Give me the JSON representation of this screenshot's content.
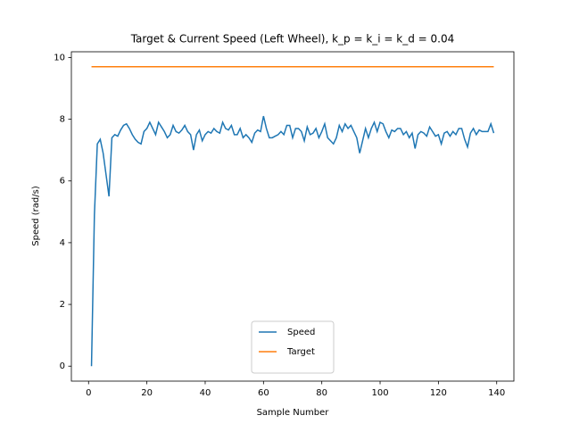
{
  "chart_data": {
    "type": "line",
    "title": "Target & Current Speed (Left Wheel), k_p = k_i = k_d = 0.04",
    "x_label": "Sample Number",
    "y_label": "Speed (rad/s)",
    "x": [
      1,
      2,
      3,
      4,
      5,
      6,
      7,
      8,
      9,
      10,
      11,
      12,
      13,
      14,
      15,
      16,
      17,
      18,
      19,
      20,
      21,
      22,
      23,
      24,
      25,
      26,
      27,
      28,
      29,
      30,
      31,
      32,
      33,
      34,
      35,
      36,
      37,
      38,
      39,
      40,
      41,
      42,
      43,
      44,
      45,
      46,
      47,
      48,
      49,
      50,
      51,
      52,
      53,
      54,
      55,
      56,
      57,
      58,
      59,
      60,
      61,
      62,
      63,
      64,
      65,
      66,
      67,
      68,
      69,
      70,
      71,
      72,
      73,
      74,
      75,
      76,
      77,
      78,
      79,
      80,
      81,
      82,
      83,
      84,
      85,
      86,
      87,
      88,
      89,
      90,
      91,
      92,
      93,
      94,
      95,
      96,
      97,
      98,
      99,
      100,
      101,
      102,
      103,
      104,
      105,
      106,
      107,
      108,
      109,
      110,
      111,
      112,
      113,
      114,
      115,
      116,
      117,
      118,
      119,
      120,
      121,
      122,
      123,
      124,
      125,
      126,
      127,
      128,
      129,
      130,
      131,
      132,
      133,
      134,
      135,
      136,
      137,
      138,
      139
    ],
    "series": [
      {
        "name": "Speed",
        "color": "#1f77b4",
        "values": [
          0,
          4.9,
          7.2,
          7.35,
          6.9,
          6.2,
          5.5,
          7.4,
          7.5,
          7.45,
          7.65,
          7.8,
          7.85,
          7.7,
          7.5,
          7.35,
          7.25,
          7.2,
          7.6,
          7.7,
          7.9,
          7.7,
          7.5,
          7.9,
          7.75,
          7.6,
          7.4,
          7.5,
          7.8,
          7.6,
          7.55,
          7.65,
          7.8,
          7.6,
          7.5,
          7.0,
          7.5,
          7.65,
          7.3,
          7.5,
          7.6,
          7.55,
          7.7,
          7.6,
          7.55,
          7.9,
          7.7,
          7.65,
          7.8,
          7.5,
          7.5,
          7.7,
          7.4,
          7.5,
          7.4,
          7.25,
          7.55,
          7.65,
          7.6,
          8.1,
          7.7,
          7.4,
          7.4,
          7.45,
          7.5,
          7.6,
          7.5,
          7.8,
          7.8,
          7.4,
          7.7,
          7.7,
          7.6,
          7.3,
          7.75,
          7.5,
          7.55,
          7.7,
          7.4,
          7.6,
          7.85,
          7.4,
          7.3,
          7.2,
          7.4,
          7.8,
          7.6,
          7.85,
          7.7,
          7.8,
          7.6,
          7.4,
          6.9,
          7.3,
          7.7,
          7.4,
          7.7,
          7.9,
          7.6,
          7.9,
          7.85,
          7.6,
          7.4,
          7.65,
          7.6,
          7.7,
          7.7,
          7.5,
          7.6,
          7.4,
          7.55,
          7.05,
          7.5,
          7.6,
          7.55,
          7.45,
          7.75,
          7.6,
          7.45,
          7.5,
          7.2,
          7.55,
          7.6,
          7.45,
          7.6,
          7.5,
          7.7,
          7.7,
          7.35,
          7.1,
          7.55,
          7.7,
          7.5,
          7.65,
          7.6,
          7.6,
          7.6,
          7.85,
          7.55
        ]
      },
      {
        "name": "Target",
        "color": "#ff7f0e",
        "values": [
          9.7,
          9.7,
          9.7,
          9.7,
          9.7,
          9.7,
          9.7,
          9.7,
          9.7,
          9.7,
          9.7,
          9.7,
          9.7,
          9.7,
          9.7,
          9.7,
          9.7,
          9.7,
          9.7,
          9.7,
          9.7,
          9.7,
          9.7,
          9.7,
          9.7,
          9.7,
          9.7,
          9.7,
          9.7,
          9.7,
          9.7,
          9.7,
          9.7,
          9.7,
          9.7,
          9.7,
          9.7,
          9.7,
          9.7,
          9.7,
          9.7,
          9.7,
          9.7,
          9.7,
          9.7,
          9.7,
          9.7,
          9.7,
          9.7,
          9.7,
          9.7,
          9.7,
          9.7,
          9.7,
          9.7,
          9.7,
          9.7,
          9.7,
          9.7,
          9.7,
          9.7,
          9.7,
          9.7,
          9.7,
          9.7,
          9.7,
          9.7,
          9.7,
          9.7,
          9.7,
          9.7,
          9.7,
          9.7,
          9.7,
          9.7,
          9.7,
          9.7,
          9.7,
          9.7,
          9.7,
          9.7,
          9.7,
          9.7,
          9.7,
          9.7,
          9.7,
          9.7,
          9.7,
          9.7,
          9.7,
          9.7,
          9.7,
          9.7,
          9.7,
          9.7,
          9.7,
          9.7,
          9.7,
          9.7,
          9.7,
          9.7,
          9.7,
          9.7,
          9.7,
          9.7,
          9.7,
          9.7,
          9.7,
          9.7,
          9.7,
          9.7,
          9.7,
          9.7,
          9.7,
          9.7,
          9.7,
          9.7,
          9.7,
          9.7,
          9.7,
          9.7,
          9.7,
          9.7,
          9.7,
          9.7,
          9.7,
          9.7,
          9.7,
          9.7,
          9.7,
          9.7,
          9.7,
          9.7,
          9.7,
          9.7,
          9.7,
          9.7,
          9.7,
          9.7
        ]
      }
    ],
    "xlim": [
      -5.9,
      145.9
    ],
    "ylim": [
      -0.485,
      10.185
    ],
    "xticks": [
      0,
      20,
      40,
      60,
      80,
      100,
      120,
      140
    ],
    "yticks": [
      0,
      2,
      4,
      6,
      8,
      10
    ],
    "grid": false,
    "legend": "lower center"
  }
}
